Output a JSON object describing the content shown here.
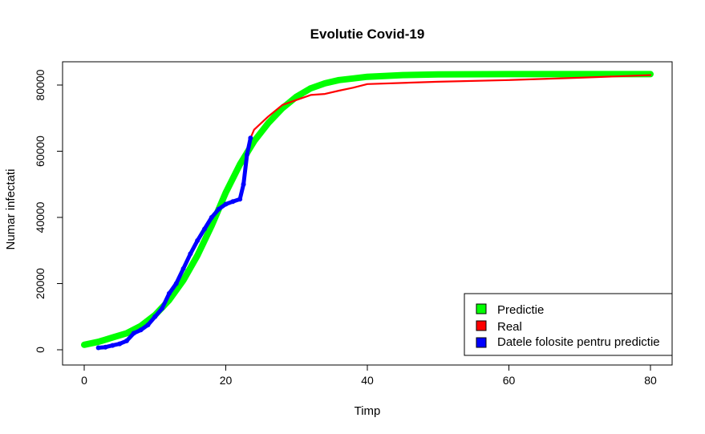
{
  "chart_data": {
    "type": "line",
    "title": "Evolutie Covid-19",
    "xlabel": "Timp",
    "ylabel": "Numar infectati",
    "xlim": [
      0,
      80
    ],
    "ylim": [
      0,
      85000
    ],
    "x_ticks": [
      0,
      20,
      40,
      60,
      80
    ],
    "y_ticks": [
      0,
      20000,
      40000,
      60000,
      80000
    ],
    "x_tick_labels": [
      "0",
      "20",
      "40",
      "60",
      "80"
    ],
    "y_tick_labels": [
      "0",
      "20000",
      "40000",
      "60000",
      "80000"
    ],
    "grid": false,
    "legend_position": "bottom-right",
    "colors": {
      "predictie": "#00ff00",
      "real": "#ff0000",
      "folosite": "#0000ff"
    },
    "series": [
      {
        "name": "Predictie",
        "color": "#00ff00",
        "x": [
          0,
          2,
          4,
          6,
          8,
          10,
          12,
          14,
          16,
          18,
          20,
          22,
          24,
          26,
          28,
          30,
          32,
          34,
          36,
          38,
          40,
          45,
          50,
          60,
          70,
          80
        ],
        "y": [
          1500,
          2400,
          3700,
          5000,
          7200,
          10500,
          15000,
          21000,
          28500,
          37500,
          47500,
          56000,
          63000,
          68500,
          73000,
          76500,
          79000,
          80500,
          81500,
          82000,
          82500,
          83000,
          83200,
          83300,
          83300,
          83300
        ]
      },
      {
        "name": "Real",
        "color": "#ff0000",
        "x": [
          2,
          3,
          4,
          5,
          6,
          7,
          8,
          9,
          10,
          11,
          12,
          13,
          14,
          15,
          16,
          17,
          18,
          19,
          20,
          21,
          22,
          22.5,
          23,
          23.5,
          24,
          26,
          28,
          30,
          32,
          34,
          36,
          38,
          40,
          50,
          60,
          70,
          80
        ],
        "y": [
          600,
          800,
          1300,
          1800,
          2700,
          5000,
          6000,
          7500,
          10000,
          12500,
          17000,
          20000,
          24500,
          29000,
          33000,
          36500,
          40000,
          42500,
          44000,
          44800,
          45500,
          50000,
          59000,
          64000,
          66500,
          70500,
          74000,
          75500,
          77000,
          77300,
          78300,
          79200,
          80300,
          81000,
          81500,
          82200,
          83000
        ]
      },
      {
        "name": "Datele folosite pentru predictie",
        "color": "#0000ff",
        "x": [
          2,
          3,
          4,
          5,
          6,
          7,
          8,
          9,
          10,
          11,
          12,
          13,
          14,
          15,
          16,
          17,
          18,
          19,
          20,
          21,
          22,
          22.5,
          23,
          23.5
        ],
        "y": [
          600,
          800,
          1300,
          1800,
          2700,
          5000,
          6000,
          7500,
          10000,
          12500,
          17000,
          20000,
          24500,
          29000,
          33000,
          36500,
          40000,
          42500,
          44000,
          44800,
          45500,
          50000,
          59000,
          64000
        ]
      }
    ],
    "legend": [
      {
        "label": "Predictie",
        "color": "#00ff00"
      },
      {
        "label": "Real",
        "color": "#ff0000"
      },
      {
        "label": "Datele folosite pentru predictie",
        "color": "#0000ff"
      }
    ]
  }
}
